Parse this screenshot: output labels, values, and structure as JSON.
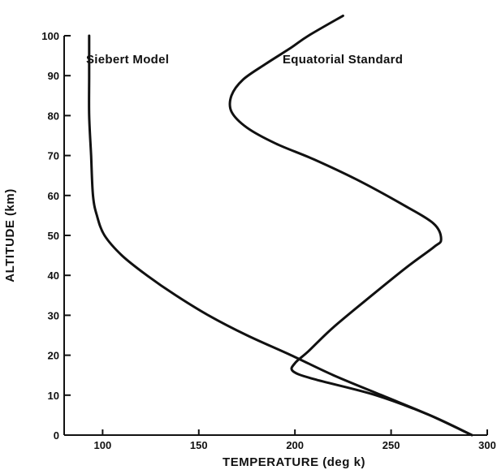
{
  "chart_data": {
    "type": "line",
    "title": "",
    "xlabel": "TEMPERATURE (deg k)",
    "ylabel": "ALTITUDE (km)",
    "xlim": [
      80,
      300
    ],
    "ylim": [
      0,
      100
    ],
    "x_ticks": [
      100,
      150,
      200,
      250,
      300
    ],
    "y_ticks": [
      0,
      10,
      20,
      30,
      40,
      50,
      60,
      70,
      80,
      90,
      100
    ],
    "grid": false,
    "series": [
      {
        "name": "Siebert Model",
        "points": [
          [
            292,
            0
          ],
          [
            270,
            5
          ],
          [
            245,
            10
          ],
          [
            220,
            15
          ],
          [
            198,
            20
          ],
          [
            175,
            25
          ],
          [
            155,
            30
          ],
          [
            138,
            35
          ],
          [
            123,
            40
          ],
          [
            110,
            45
          ],
          [
            101,
            50
          ],
          [
            97,
            55
          ],
          [
            95,
            60
          ],
          [
            94,
            70
          ],
          [
            93,
            80
          ],
          [
            93,
            90
          ],
          [
            93,
            100
          ]
        ]
      },
      {
        "name": "Equatorial Standard",
        "points": [
          [
            292,
            0
          ],
          [
            270,
            5
          ],
          [
            242,
            10
          ],
          [
            210,
            14
          ],
          [
            199,
            16
          ],
          [
            200,
            18
          ],
          [
            207,
            21
          ],
          [
            220,
            27
          ],
          [
            240,
            35
          ],
          [
            258,
            42
          ],
          [
            272,
            47
          ],
          [
            276,
            49
          ],
          [
            272,
            53
          ],
          [
            255,
            58
          ],
          [
            232,
            64
          ],
          [
            210,
            69
          ],
          [
            190,
            73
          ],
          [
            175,
            77
          ],
          [
            167,
            81
          ],
          [
            167,
            85
          ],
          [
            173,
            89
          ],
          [
            185,
            93
          ],
          [
            198,
            97
          ],
          [
            207,
            100
          ],
          [
            225,
            105
          ]
        ]
      }
    ]
  }
}
